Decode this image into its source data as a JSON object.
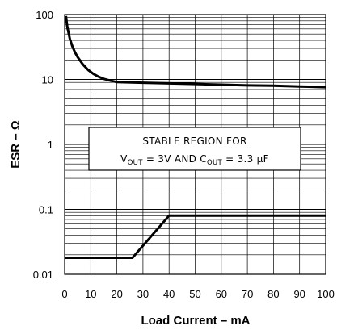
{
  "chart_data": {
    "type": "line",
    "xlabel": "Load Current – mA",
    "ylabel": "ESR – Ω",
    "xlim": [
      0,
      100
    ],
    "ylim": [
      0.01,
      100
    ],
    "yscale": "log",
    "grid": true,
    "x_ticks": [
      "0",
      "10",
      "20",
      "30",
      "40",
      "50",
      "60",
      "70",
      "80",
      "90",
      "100"
    ],
    "y_ticks": [
      "100",
      "10",
      "1",
      "0.1",
      "0.01"
    ],
    "series": [
      {
        "x": [
          0.5,
          1,
          2,
          3,
          4,
          5,
          7,
          9,
          11,
          13,
          15,
          17,
          19,
          20,
          30,
          40,
          50,
          60,
          70,
          80,
          90,
          100
        ],
        "y": [
          95,
          65,
          42,
          32,
          26,
          22,
          17,
          14,
          12.2,
          11,
          10.2,
          9.7,
          9.3,
          9.1,
          8.9,
          8.7,
          8.5,
          8.3,
          8.1,
          8.0,
          7.8,
          7.6
        ]
      },
      {
        "x": [
          0,
          26,
          40,
          100
        ],
        "y": [
          0.018,
          0.018,
          0.08,
          0.08
        ]
      }
    ],
    "annotation": {
      "line1": "STABLE REGION FOR",
      "vout_main": "V",
      "vout_sub": "OUT",
      "vout_value": " = 3V AND C",
      "cout_sub": "OUT",
      "cout_value": " = 3.3 μF"
    }
  }
}
